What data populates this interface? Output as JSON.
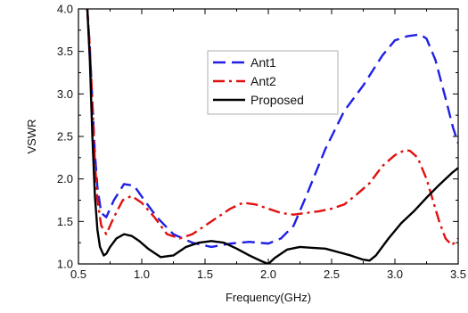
{
  "chart_data": {
    "type": "line",
    "xlabel": "Frequency(GHz)",
    "ylabel": "VSWR",
    "xlim": [
      0.5,
      3.5
    ],
    "ylim": [
      1.0,
      4.0
    ],
    "xticks": [
      0.5,
      1.0,
      1.5,
      2.0,
      2.5,
      3.0,
      3.5
    ],
    "xtick_labels": [
      "0.5",
      "1.0",
      "1.5",
      "2.0",
      "2.5",
      "3.0",
      "3.5"
    ],
    "yticks": [
      1.0,
      1.5,
      2.0,
      2.5,
      3.0,
      3.5,
      4.0
    ],
    "ytick_labels": [
      "1.0",
      "1.5",
      "2.0",
      "2.5",
      "3.0",
      "3.5",
      "4.0"
    ],
    "grid": false,
    "legend_position": "center-right",
    "series": [
      {
        "name": "Ant1",
        "color": "#1f1fe6",
        "style": "dashed",
        "x": [
          0.57,
          0.59,
          0.61,
          0.63,
          0.65,
          0.68,
          0.72,
          0.78,
          0.86,
          0.94,
          1.02,
          1.12,
          1.25,
          1.4,
          1.55,
          1.7,
          1.85,
          2.0,
          2.1,
          2.2,
          2.3,
          2.45,
          2.6,
          2.75,
          2.9,
          3.0,
          3.1,
          3.2,
          3.25,
          3.32,
          3.4,
          3.46,
          3.5
        ],
        "y": [
          4.0,
          3.55,
          2.9,
          2.3,
          1.9,
          1.6,
          1.55,
          1.75,
          1.94,
          1.92,
          1.75,
          1.55,
          1.35,
          1.25,
          1.2,
          1.24,
          1.26,
          1.24,
          1.3,
          1.45,
          1.8,
          2.35,
          2.8,
          3.1,
          3.45,
          3.63,
          3.68,
          3.7,
          3.65,
          3.4,
          2.95,
          2.6,
          2.42
        ]
      },
      {
        "name": "Ant2",
        "color": "#e01010",
        "style": "dashdot",
        "x": [
          0.57,
          0.59,
          0.61,
          0.63,
          0.65,
          0.68,
          0.72,
          0.78,
          0.85,
          0.92,
          1.0,
          1.1,
          1.2,
          1.3,
          1.4,
          1.5,
          1.6,
          1.7,
          1.8,
          1.9,
          2.0,
          2.1,
          2.2,
          2.3,
          2.4,
          2.5,
          2.6,
          2.7,
          2.8,
          2.9,
          3.0,
          3.08,
          3.12,
          3.18,
          3.25,
          3.3,
          3.35,
          3.4,
          3.45,
          3.5
        ],
        "y": [
          4.0,
          3.55,
          2.9,
          2.2,
          1.75,
          1.45,
          1.35,
          1.55,
          1.75,
          1.8,
          1.72,
          1.55,
          1.35,
          1.3,
          1.35,
          1.45,
          1.55,
          1.65,
          1.72,
          1.7,
          1.65,
          1.6,
          1.58,
          1.6,
          1.62,
          1.65,
          1.7,
          1.82,
          1.95,
          2.15,
          2.28,
          2.34,
          2.33,
          2.25,
          2.0,
          1.75,
          1.5,
          1.3,
          1.22,
          1.3
        ]
      },
      {
        "name": "Proposed",
        "color": "#000000",
        "style": "solid",
        "x": [
          0.57,
          0.59,
          0.61,
          0.63,
          0.65,
          0.67,
          0.7,
          0.72,
          0.75,
          0.8,
          0.86,
          0.92,
          0.98,
          1.05,
          1.15,
          1.25,
          1.35,
          1.45,
          1.55,
          1.65,
          1.75,
          1.85,
          1.95,
          2.0,
          2.05,
          2.15,
          2.25,
          2.35,
          2.45,
          2.55,
          2.65,
          2.75,
          2.8,
          2.85,
          2.95,
          3.05,
          3.15,
          3.25,
          3.35,
          3.45,
          3.5
        ],
        "y": [
          4.0,
          3.4,
          2.5,
          1.8,
          1.4,
          1.2,
          1.1,
          1.12,
          1.2,
          1.3,
          1.35,
          1.33,
          1.27,
          1.18,
          1.08,
          1.1,
          1.2,
          1.25,
          1.27,
          1.25,
          1.18,
          1.1,
          1.03,
          1.0,
          1.07,
          1.17,
          1.2,
          1.19,
          1.18,
          1.14,
          1.1,
          1.05,
          1.04,
          1.1,
          1.3,
          1.48,
          1.62,
          1.78,
          1.93,
          2.07,
          2.13
        ]
      }
    ]
  }
}
